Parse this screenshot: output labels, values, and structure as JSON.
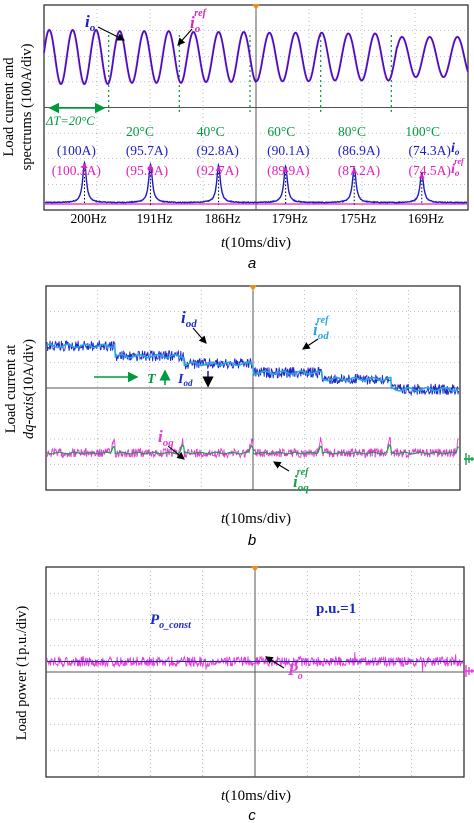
{
  "colors": {
    "io": "#1c1cc8",
    "io_ref": "#e020c0",
    "temp": "#009a3e",
    "iod": "#1a28c8",
    "iod_ref": "#22a8e0",
    "ioq": "#e23ad2",
    "ioq_ref": "#16a050",
    "p_const": "#1a28c8",
    "po": "#e63ad8",
    "grid": "#8a8a8a",
    "frame": "#222222",
    "marker": "#e89020"
  },
  "chart_data": [
    {
      "panel": "a",
      "type": "line",
      "ylabel": [
        "Load current and",
        "spectrums (100A/div)"
      ],
      "xlabel_var": "t",
      "xlabel_unit": "(10ms/div)",
      "caption": "a",
      "series": [
        {
          "name": "i",
          "sub": "o",
          "sup": "",
          "role": "measured"
        },
        {
          "name": "i",
          "sub": "o",
          "sup": "ref",
          "role": "reference"
        }
      ],
      "delta_label": "ΔT=20°C",
      "segments": [
        {
          "temperature": "",
          "freq": "200Hz",
          "io_amp": "(100A)",
          "ioref_amp": "(100.3A)",
          "freq_hz": 200,
          "amp_a": 100.0,
          "ref_amp_a": 100.3
        },
        {
          "temperature": "20°C",
          "freq": "191Hz",
          "io_amp": "(95.7A)",
          "ioref_amp": "(95.9A)",
          "freq_hz": 191,
          "amp_a": 95.7,
          "ref_amp_a": 95.9
        },
        {
          "temperature": "40°C",
          "freq": "186Hz",
          "io_amp": "(92.8A)",
          "ioref_amp": "(92.7A)",
          "freq_hz": 186,
          "amp_a": 92.8,
          "ref_amp_a": 92.7
        },
        {
          "temperature": "60°C",
          "freq": "179Hz",
          "io_amp": "(90.1A)",
          "ioref_amp": "(89.9A)",
          "freq_hz": 179,
          "amp_a": 90.1,
          "ref_amp_a": 89.9
        },
        {
          "temperature": "80°C",
          "freq": "175Hz",
          "io_amp": "(86.9A)",
          "ioref_amp": "(87.2A)",
          "freq_hz": 175,
          "amp_a": 86.9,
          "ref_amp_a": 87.2
        },
        {
          "temperature": "100°C",
          "freq": "169Hz",
          "io_amp": "(74.3A)",
          "ioref_amp": "(74.5A)",
          "freq_hz": 169,
          "amp_a": 74.3,
          "ref_amp_a": 74.5
        }
      ]
    },
    {
      "panel": "b",
      "type": "line",
      "ylabel_prefix": "Load current at",
      "ylabel_axis": "dq-axis",
      "ylabel_unit": "(10A/div)",
      "xlabel_var": "t",
      "xlabel_unit": "(10ms/div)",
      "caption": "b",
      "series": [
        {
          "name": "i",
          "sub": "od",
          "sup": ""
        },
        {
          "name": "i",
          "sub": "od",
          "sup": "ref"
        },
        {
          "name": "i",
          "sub": "oq",
          "sup": ""
        },
        {
          "name": "i",
          "sub": "oq",
          "sup": "ref"
        }
      ],
      "trend_T": "T",
      "trend_I": "I",
      "trend_I_sub": "od",
      "iod_levels_div": [
        1.6,
        1.2,
        0.9,
        0.55,
        0.3,
        -0.1
      ]
    },
    {
      "panel": "c",
      "type": "line",
      "ylabel": "Load power (1p.u./div)",
      "xlabel_var": "t",
      "xlabel_unit": "(10ms/div)",
      "caption": "c",
      "series": [
        {
          "name": "P",
          "sub": "o_const",
          "sup": ""
        },
        {
          "name": "P",
          "sub": "o",
          "sup": ""
        }
      ],
      "pu_label": "p.u.=1",
      "power_level_pu": 1
    }
  ]
}
